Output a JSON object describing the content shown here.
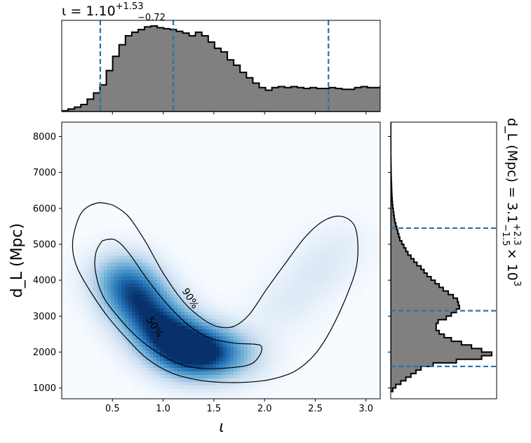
{
  "chart_data": [
    {
      "type": "heatmap",
      "panel": "joint",
      "xlabel": "ι",
      "ylabel": "d_L (Mpc)",
      "xlim": [
        0.0,
        3.14
      ],
      "ylim": [
        700,
        8400
      ],
      "xticks": [
        "0.5",
        "1.0",
        "1.5",
        "2.0",
        "2.5",
        "3.0"
      ],
      "xtick_values": [
        0.5,
        1.0,
        1.5,
        2.0,
        2.5,
        3.0
      ],
      "yticks": [
        "1000",
        "2000",
        "3000",
        "4000",
        "5000",
        "6000",
        "7000",
        "8000"
      ],
      "ytick_values": [
        1000,
        2000,
        3000,
        4000,
        5000,
        6000,
        7000,
        8000
      ],
      "colormap": "Blues",
      "density_modes": [
        {
          "x": 1.18,
          "y": 2100,
          "weight": 1.0
        },
        {
          "x": 0.95,
          "y": 2700,
          "weight": 0.8
        },
        {
          "x": 0.75,
          "y": 3450,
          "weight": 0.75
        },
        {
          "x": 0.6,
          "y": 4100,
          "weight": 0.55
        },
        {
          "x": 1.45,
          "y": 1950,
          "weight": 0.7
        },
        {
          "x": 1.75,
          "y": 1950,
          "weight": 0.3
        },
        {
          "x": 2.2,
          "y": 3300,
          "weight": 0.13
        },
        {
          "x": 2.5,
          "y": 4200,
          "weight": 0.14
        },
        {
          "x": 2.75,
          "y": 5000,
          "weight": 0.1
        }
      ],
      "contours": [
        {
          "label": "90%",
          "label_at": [
            1.27,
            3500
          ],
          "points": [
            [
              0.5,
              6100
            ],
            [
              0.35,
              6150
            ],
            [
              0.2,
              5900
            ],
            [
              0.12,
              5300
            ],
            [
              0.11,
              4800
            ],
            [
              0.16,
              4300
            ],
            [
              0.28,
              3700
            ],
            [
              0.45,
              3000
            ],
            [
              0.65,
              2350
            ],
            [
              0.85,
              1800
            ],
            [
              1.1,
              1400
            ],
            [
              1.4,
              1200
            ],
            [
              1.7,
              1150
            ],
            [
              1.98,
              1200
            ],
            [
              2.17,
              1320
            ],
            [
              2.33,
              1520
            ],
            [
              2.5,
              1950
            ],
            [
              2.65,
              2600
            ],
            [
              2.8,
              3500
            ],
            [
              2.9,
              4300
            ],
            [
              2.92,
              5000
            ],
            [
              2.88,
              5550
            ],
            [
              2.75,
              5780
            ],
            [
              2.58,
              5650
            ],
            [
              2.4,
              5200
            ],
            [
              2.2,
              4450
            ],
            [
              2.02,
              3750
            ],
            [
              1.85,
              3050
            ],
            [
              1.7,
              2720
            ],
            [
              1.55,
              2700
            ],
            [
              1.4,
              2900
            ],
            [
              1.2,
              3400
            ],
            [
              1.0,
              4200
            ],
            [
              0.82,
              5100
            ],
            [
              0.65,
              5800
            ],
            [
              0.5,
              6100
            ]
          ]
        },
        {
          "label": "50%",
          "label_at": [
            0.92,
            2700
          ],
          "points": [
            [
              0.4,
              5100
            ],
            [
              0.52,
              5130
            ],
            [
              0.65,
              4800
            ],
            [
              0.85,
              4000
            ],
            [
              1.05,
              3300
            ],
            [
              1.25,
              2750
            ],
            [
              1.45,
              2400
            ],
            [
              1.7,
              2250
            ],
            [
              1.9,
              2220
            ],
            [
              1.97,
              2150
            ],
            [
              1.95,
              1900
            ],
            [
              1.85,
              1650
            ],
            [
              1.6,
              1550
            ],
            [
              1.35,
              1550
            ],
            [
              1.15,
              1680
            ],
            [
              0.95,
              1980
            ],
            [
              0.75,
              2400
            ],
            [
              0.55,
              3000
            ],
            [
              0.4,
              3600
            ],
            [
              0.33,
              4300
            ],
            [
              0.34,
              4800
            ],
            [
              0.4,
              5100
            ]
          ]
        }
      ]
    },
    {
      "type": "histogram",
      "panel": "marginal-top",
      "title": "ι = 1.10",
      "title_sup": "+1.53",
      "title_sub": "−0.72",
      "xlim": [
        0.0,
        3.14
      ],
      "bin_start": 0.0,
      "bin_width": 0.0628,
      "values": [
        0.01,
        0.03,
        0.05,
        0.08,
        0.14,
        0.21,
        0.3,
        0.46,
        0.62,
        0.75,
        0.85,
        0.89,
        0.92,
        0.95,
        0.96,
        0.94,
        0.93,
        0.92,
        0.9,
        0.88,
        0.85,
        0.89,
        0.85,
        0.78,
        0.71,
        0.67,
        0.58,
        0.52,
        0.44,
        0.38,
        0.32,
        0.27,
        0.24,
        0.27,
        0.28,
        0.27,
        0.28,
        0.27,
        0.26,
        0.27,
        0.26,
        0.26,
        0.27,
        0.26,
        0.25,
        0.25,
        0.27,
        0.28,
        0.27,
        0.27,
        0.28,
        0.3,
        0.32,
        0.31,
        0.28,
        0.26,
        0.23,
        0.19,
        0.15,
        0.11,
        0.07,
        0.03,
        0.01
      ],
      "quantile_lines": [
        0.38,
        1.1,
        2.63
      ]
    },
    {
      "type": "histogram",
      "panel": "marginal-right",
      "orientation": "horizontal",
      "ylabel": "d_L (Mpc) = 3.1",
      "ylabel_sup": "+2.3",
      "ylabel_sub": "−1.5",
      "ylabel_suffix": "× 10",
      "ylabel_suffix_sup": "3",
      "ylim": [
        700,
        8400
      ],
      "bin_start": 900,
      "bin_width": 100,
      "values": [
        0.02,
        0.05,
        0.1,
        0.15,
        0.2,
        0.25,
        0.3,
        0.42,
        0.65,
        0.9,
        1.0,
        0.9,
        0.8,
        0.7,
        0.6,
        0.53,
        0.48,
        0.45,
        0.45,
        0.47,
        0.55,
        0.6,
        0.65,
        0.68,
        0.67,
        0.66,
        0.62,
        0.57,
        0.52,
        0.48,
        0.44,
        0.4,
        0.36,
        0.33,
        0.3,
        0.26,
        0.23,
        0.2,
        0.17,
        0.15,
        0.13,
        0.11,
        0.09,
        0.08,
        0.07,
        0.06,
        0.05,
        0.04,
        0.035,
        0.03,
        0.025,
        0.02,
        0.017,
        0.014,
        0.012,
        0.01,
        0.009,
        0.008,
        0.006,
        0.005,
        0.004,
        0.003,
        0.003,
        0.002,
        0.002,
        0.001,
        0.001,
        0.001,
        0.001,
        0.001,
        0.0005,
        0.0005,
        0.0005,
        0.0005,
        0.0005
      ],
      "quantile_lines": [
        1600,
        3150,
        5450
      ]
    }
  ],
  "colors": {
    "histogram_fill": "#808080",
    "histogram_edge": "#000000",
    "quantile_line": "#1f77b4",
    "contour": "#000000",
    "heatmap_low": "#f7fbff",
    "heatmap_high": "#08306b"
  }
}
